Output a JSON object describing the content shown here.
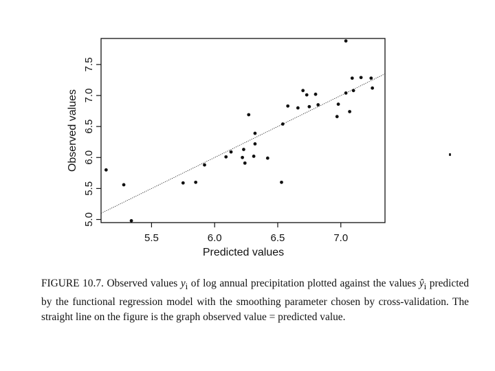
{
  "chart_data": {
    "type": "scatter",
    "title": "",
    "xlabel": "Predicted values",
    "ylabel": "Observed values",
    "xlim": [
      5.1,
      7.35
    ],
    "ylim": [
      4.95,
      7.92
    ],
    "x_ticks": [
      "5.5",
      "6.0",
      "6.5",
      "7.0"
    ],
    "y_ticks": [
      "5.0",
      "5.5",
      "6.0",
      "6.5",
      "7.0",
      "7.5"
    ],
    "grid": false,
    "reference_line": {
      "slope": 1,
      "intercept": 0,
      "style": "dotted"
    },
    "points": [
      {
        "x": 5.14,
        "y": 5.8
      },
      {
        "x": 5.28,
        "y": 5.56
      },
      {
        "x": 5.34,
        "y": 4.98
      },
      {
        "x": 5.75,
        "y": 5.59
      },
      {
        "x": 5.85,
        "y": 5.6
      },
      {
        "x": 5.92,
        "y": 5.88
      },
      {
        "x": 6.09,
        "y": 6.01
      },
      {
        "x": 6.13,
        "y": 6.09
      },
      {
        "x": 6.22,
        "y": 6.0
      },
      {
        "x": 6.23,
        "y": 6.13
      },
      {
        "x": 6.24,
        "y": 5.91
      },
      {
        "x": 6.27,
        "y": 6.69
      },
      {
        "x": 6.31,
        "y": 6.02
      },
      {
        "x": 6.32,
        "y": 6.22
      },
      {
        "x": 6.32,
        "y": 6.39
      },
      {
        "x": 6.42,
        "y": 5.99
      },
      {
        "x": 6.53,
        "y": 5.6
      },
      {
        "x": 6.54,
        "y": 6.54
      },
      {
        "x": 6.58,
        "y": 6.83
      },
      {
        "x": 6.66,
        "y": 6.8
      },
      {
        "x": 6.7,
        "y": 7.08
      },
      {
        "x": 6.73,
        "y": 7.01
      },
      {
        "x": 6.75,
        "y": 6.82
      },
      {
        "x": 6.8,
        "y": 7.02
      },
      {
        "x": 6.82,
        "y": 6.85
      },
      {
        "x": 6.97,
        "y": 6.66
      },
      {
        "x": 6.98,
        "y": 6.86
      },
      {
        "x": 7.04,
        "y": 7.88
      },
      {
        "x": 7.04,
        "y": 7.04
      },
      {
        "x": 7.07,
        "y": 6.74
      },
      {
        "x": 7.09,
        "y": 7.28
      },
      {
        "x": 7.1,
        "y": 7.08
      },
      {
        "x": 7.16,
        "y": 7.29
      },
      {
        "x": 7.24,
        "y": 7.28
      },
      {
        "x": 7.25,
        "y": 7.12
      }
    ]
  },
  "caption": {
    "label": "FIGURE 10.7.",
    "part1": " Observed values ",
    "var1": "y",
    "sub1": "i",
    "part2": " of log annual precipitation plotted against the values ",
    "var2": "ŷ",
    "sub2": "i",
    "part3": " predicted by the functional regression model with the smoothing parameter chosen by cross-validation. The straight line on the figure is the graph observed value = predicted value."
  }
}
